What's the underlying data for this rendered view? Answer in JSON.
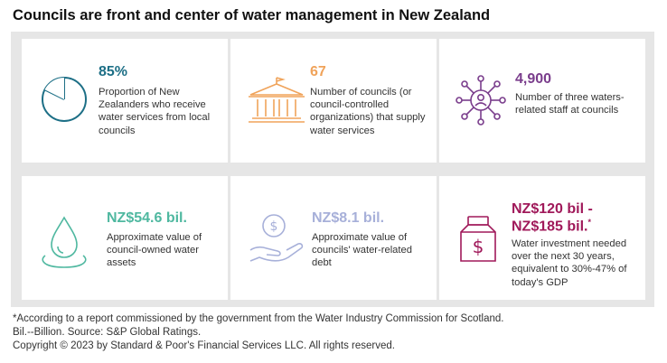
{
  "title": "Councils are front and center of water management in New Zealand",
  "cards": [
    {
      "value": "85%",
      "description": "Proportion of New Zealanders who receive water services from local councils",
      "color": "#1d6f86",
      "icon": "pie-chart-icon"
    },
    {
      "value": "67",
      "description": "Number of councils (or council-controlled organizations) that supply water services",
      "color": "#f0a35a",
      "icon": "government-building-icon"
    },
    {
      "value": "4,900",
      "description": "Number of three waters-related staff at councils",
      "color": "#7a3d8c",
      "icon": "people-network-icon"
    },
    {
      "value": "NZ$54.6 bil.",
      "description": "Approximate value of council-owned water assets",
      "color": "#4fb8a0",
      "icon": "water-drop-icon"
    },
    {
      "value": "NZ$8.1 bil.",
      "description": "Approximate value of councils' water-related debt",
      "color": "#a7b0d9",
      "icon": "hand-coin-icon"
    },
    {
      "value_line1": "NZ$120 bil -",
      "value_line2": "NZ$185 bil.",
      "value_sup": "*",
      "description": "Water investment needed over the next 30 years, equivalent to 30%-47% of today's GDP",
      "color": "#a0195a",
      "icon": "money-bag-icon"
    }
  ],
  "footer": {
    "note": "*According to a report commissioned by the government from the Water Industry Commission for Scotland.",
    "source": "Bil.--Billion. Source: S&P Global Ratings.",
    "copyright": "Copyright © 2023 by Standard & Poor's Financial Services LLC. All rights reserved."
  }
}
